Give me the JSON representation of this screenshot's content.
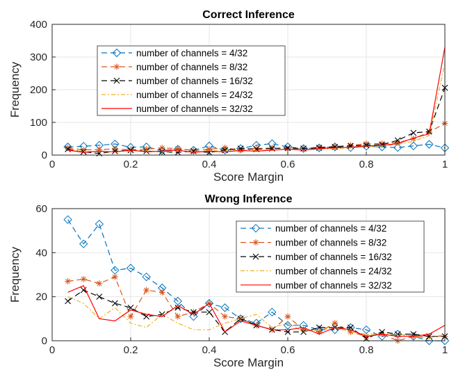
{
  "chart_data": [
    {
      "type": "line",
      "title": "Correct Inference",
      "xlabel": "Score Margin",
      "ylabel": "Frequency",
      "xlim": [
        0,
        1
      ],
      "ylim": [
        0,
        400
      ],
      "xticks": [
        "0",
        "0.2",
        "0.4",
        "0.6",
        "0.8",
        "1"
      ],
      "yticks": [
        "0",
        "100",
        "200",
        "300",
        "400"
      ],
      "grid": true,
      "legend_position": "upper-left",
      "x": [
        0.04,
        0.08,
        0.12,
        0.16,
        0.2,
        0.24,
        0.28,
        0.32,
        0.36,
        0.4,
        0.44,
        0.48,
        0.52,
        0.56,
        0.6,
        0.64,
        0.68,
        0.72,
        0.76,
        0.8,
        0.84,
        0.88,
        0.92,
        0.96,
        1.0
      ],
      "series": [
        {
          "name": "number of channels = 4/32",
          "color": "#0072BD",
          "dash": "8,5",
          "marker": "diamond",
          "values": [
            25,
            27,
            30,
            34,
            24,
            25,
            14,
            18,
            15,
            28,
            15,
            20,
            30,
            35,
            25,
            20,
            22,
            25,
            23,
            27,
            25,
            23,
            28,
            33,
            22
          ]
        },
        {
          "name": "number of channels = 8/32",
          "color": "#D95319",
          "dash": "8,5",
          "marker": "star",
          "values": [
            22,
            16,
            17,
            19,
            16,
            18,
            22,
            20,
            14,
            18,
            22,
            15,
            20,
            22,
            19,
            20,
            24,
            26,
            30,
            35,
            35,
            38,
            50,
            70,
            97
          ]
        },
        {
          "name": "number of channels = 16/32",
          "color": "#000000",
          "dash": "8,5",
          "marker": "x",
          "values": [
            18,
            10,
            5,
            12,
            15,
            12,
            10,
            8,
            12,
            8,
            15,
            20,
            18,
            20,
            22,
            20,
            22,
            25,
            28,
            30,
            32,
            45,
            68,
            72,
            206
          ]
        },
        {
          "name": "number of channels = 24/32",
          "color": "#EDB120",
          "dash": "6,3,2,3",
          "marker": "none",
          "values": [
            15,
            12,
            10,
            10,
            12,
            14,
            10,
            12,
            10,
            14,
            12,
            15,
            14,
            15,
            18,
            16,
            18,
            20,
            22,
            25,
            28,
            33,
            42,
            60,
            280
          ]
        },
        {
          "name": "number of channels = 32/32",
          "color": "#FF0000",
          "dash": "none",
          "marker": "none",
          "values": [
            15,
            8,
            12,
            10,
            15,
            10,
            12,
            15,
            8,
            12,
            10,
            14,
            12,
            15,
            18,
            15,
            20,
            22,
            24,
            28,
            30,
            35,
            52,
            65,
            330
          ]
        }
      ]
    },
    {
      "type": "line",
      "title": "Wrong Inference",
      "xlabel": "Score Margin",
      "ylabel": "Frequency",
      "xlim": [
        0,
        1
      ],
      "ylim": [
        0,
        60
      ],
      "xticks": [
        "0",
        "0.2",
        "0.4",
        "0.6",
        "0.8",
        "1"
      ],
      "yticks": [
        "0",
        "20",
        "40",
        "60"
      ],
      "grid": true,
      "legend_position": "upper-right",
      "x": [
        0.04,
        0.08,
        0.12,
        0.16,
        0.2,
        0.24,
        0.28,
        0.32,
        0.36,
        0.4,
        0.44,
        0.48,
        0.52,
        0.56,
        0.6,
        0.64,
        0.68,
        0.72,
        0.76,
        0.8,
        0.84,
        0.88,
        0.92,
        0.96,
        1.0
      ],
      "series": [
        {
          "name": "number of channels = 4/32",
          "color": "#0072BD",
          "dash": "8,5",
          "marker": "diamond",
          "values": [
            55,
            44,
            53,
            32,
            33,
            29,
            24,
            18,
            11,
            17,
            15,
            10,
            8,
            13,
            7,
            7,
            5,
            5,
            6,
            5,
            2,
            3,
            2,
            0,
            0
          ]
        },
        {
          "name": "number of channels = 8/32",
          "color": "#D95319",
          "dash": "8,5",
          "marker": "star",
          "values": [
            27,
            28,
            26,
            29,
            11,
            23,
            22,
            11,
            13,
            17,
            11,
            10,
            7,
            5,
            11,
            5,
            4,
            8,
            4,
            2,
            3,
            0,
            2,
            2,
            2
          ]
        },
        {
          "name": "number of channels = 16/32",
          "color": "#000000",
          "dash": "8,5",
          "marker": "x",
          "values": [
            18,
            23,
            20,
            17,
            15,
            11,
            12,
            15,
            13,
            13,
            4,
            10,
            7,
            5,
            4,
            4,
            6,
            6,
            6,
            1,
            4,
            3,
            3,
            2,
            2
          ]
        },
        {
          "name": "number of channels = 24/32",
          "color": "#EDB120",
          "dash": "6,3,2,3",
          "marker": "none",
          "values": [
            20,
            17,
            10,
            15,
            8,
            6,
            12,
            8,
            5,
            5,
            8,
            10,
            12,
            6,
            8,
            4,
            5,
            6,
            4,
            3,
            3,
            3,
            2,
            1,
            3
          ]
        },
        {
          "name": "number of channels = 32/32",
          "color": "#FF0000",
          "dash": "none",
          "marker": "none",
          "values": [
            22,
            25,
            10,
            9,
            14,
            12,
            11,
            16,
            12,
            17,
            4,
            9,
            7,
            5,
            5,
            6,
            3,
            6,
            5,
            2,
            3,
            2,
            2,
            3,
            7
          ]
        }
      ]
    }
  ]
}
